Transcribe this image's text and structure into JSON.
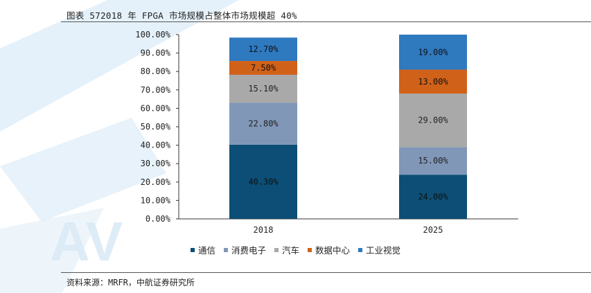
{
  "header": {
    "title": "图表 572018 年 FPGA 市场规模占整体市场规模超 40%"
  },
  "footer": {
    "source": "资料来源：MRFR，中航证券研究所"
  },
  "chart_data": {
    "type": "bar",
    "stacked": true,
    "categories": [
      "2018",
      "2025"
    ],
    "series": [
      {
        "name": "通信",
        "values": [
          40.3,
          24.0
        ],
        "labels": [
          "40.30%",
          "24.00%"
        ],
        "color": "#0c4e75"
      },
      {
        "name": "消费电子",
        "values": [
          22.8,
          15.0
        ],
        "labels": [
          "22.80%",
          "15.00%"
        ],
        "color": "#8197b8"
      },
      {
        "name": "汽车",
        "values": [
          15.1,
          29.0
        ],
        "labels": [
          "15.10%",
          "29.00%"
        ],
        "color": "#a9a9a9"
      },
      {
        "name": "数据中心",
        "values": [
          7.5,
          13.0
        ],
        "labels": [
          "7.50%",
          "13.00%"
        ],
        "color": "#d06119"
      },
      {
        "name": "工业视觉",
        "values": [
          12.7,
          19.0
        ],
        "labels": [
          "12.70%",
          "19.00%"
        ],
        "color": "#2f79bf"
      }
    ],
    "ylim": [
      0,
      100
    ],
    "yticks": [
      0,
      10,
      20,
      30,
      40,
      50,
      60,
      70,
      80,
      90,
      100
    ],
    "ytick_labels": [
      "0.00%",
      "10.00%",
      "20.00%",
      "30.00%",
      "40.00%",
      "50.00%",
      "60.00%",
      "70.00%",
      "80.00%",
      "90.00%",
      "100.00%"
    ],
    "grid": false,
    "legend_position": "bottom"
  }
}
